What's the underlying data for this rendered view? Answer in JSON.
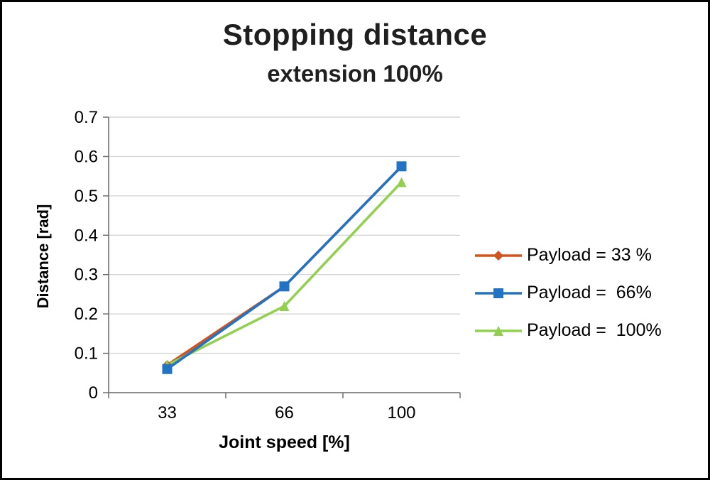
{
  "chart_data": {
    "type": "line",
    "title": "Stopping distance",
    "subtitle": "extension 100%",
    "xlabel": "Joint speed [%]",
    "ylabel": "Distance [rad]",
    "categories": [
      "33",
      "66",
      "100"
    ],
    "series": [
      {
        "name": "Payload = 33 %",
        "color": "#d2531c",
        "marker": "diamond",
        "values": [
          0.07,
          0.27,
          0.575
        ]
      },
      {
        "name": "Payload =  66%",
        "color": "#2273c3",
        "marker": "square",
        "values": [
          0.06,
          0.27,
          0.575
        ]
      },
      {
        "name": "Payload =  100%",
        "color": "#92d050",
        "marker": "triangle",
        "values": [
          0.07,
          0.22,
          0.535
        ]
      }
    ],
    "ylim": [
      0,
      0.7
    ],
    "yticks": [
      "0",
      "0.1",
      "0.2",
      "0.3",
      "0.4",
      "0.5",
      "0.6",
      "0.7"
    ],
    "grid": true,
    "legend_position": "right"
  }
}
